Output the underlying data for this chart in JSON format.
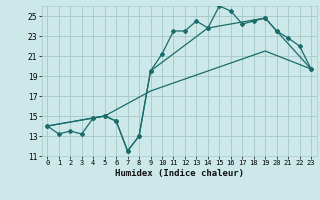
{
  "xlabel": "Humidex (Indice chaleur)",
  "bg_color": "#cce8e8",
  "grid_color": "#aacccc",
  "line_color": "#1a6b6b",
  "xlim": [
    -0.5,
    23.5
  ],
  "ylim": [
    11,
    26
  ],
  "yticks": [
    11,
    13,
    15,
    17,
    19,
    21,
    23,
    25
  ],
  "xticks": [
    0,
    1,
    2,
    3,
    4,
    5,
    6,
    7,
    8,
    9,
    10,
    11,
    12,
    13,
    14,
    15,
    16,
    17,
    18,
    19,
    20,
    21,
    22,
    23
  ],
  "series1_x": [
    0,
    1,
    2,
    3,
    4,
    5,
    6,
    7,
    8,
    9,
    10,
    11,
    12,
    13,
    14,
    15,
    16,
    17,
    18,
    19,
    20,
    21,
    22,
    23
  ],
  "series1_y": [
    14.0,
    13.2,
    13.5,
    13.2,
    14.8,
    15.0,
    14.5,
    11.5,
    13.0,
    19.5,
    21.2,
    23.5,
    23.5,
    24.5,
    23.8,
    26.0,
    25.5,
    24.2,
    24.5,
    24.8,
    23.5,
    22.8,
    22.0,
    19.7
  ],
  "series2_x": [
    0,
    4,
    5,
    6,
    7,
    8,
    9,
    14,
    19,
    20,
    23
  ],
  "series2_y": [
    14.0,
    14.8,
    15.0,
    14.5,
    11.5,
    13.0,
    19.5,
    23.8,
    24.8,
    23.5,
    19.7
  ],
  "series3_x": [
    0,
    5,
    9,
    14,
    19,
    23
  ],
  "series3_y": [
    14.0,
    15.0,
    17.5,
    19.5,
    21.5,
    19.7
  ]
}
